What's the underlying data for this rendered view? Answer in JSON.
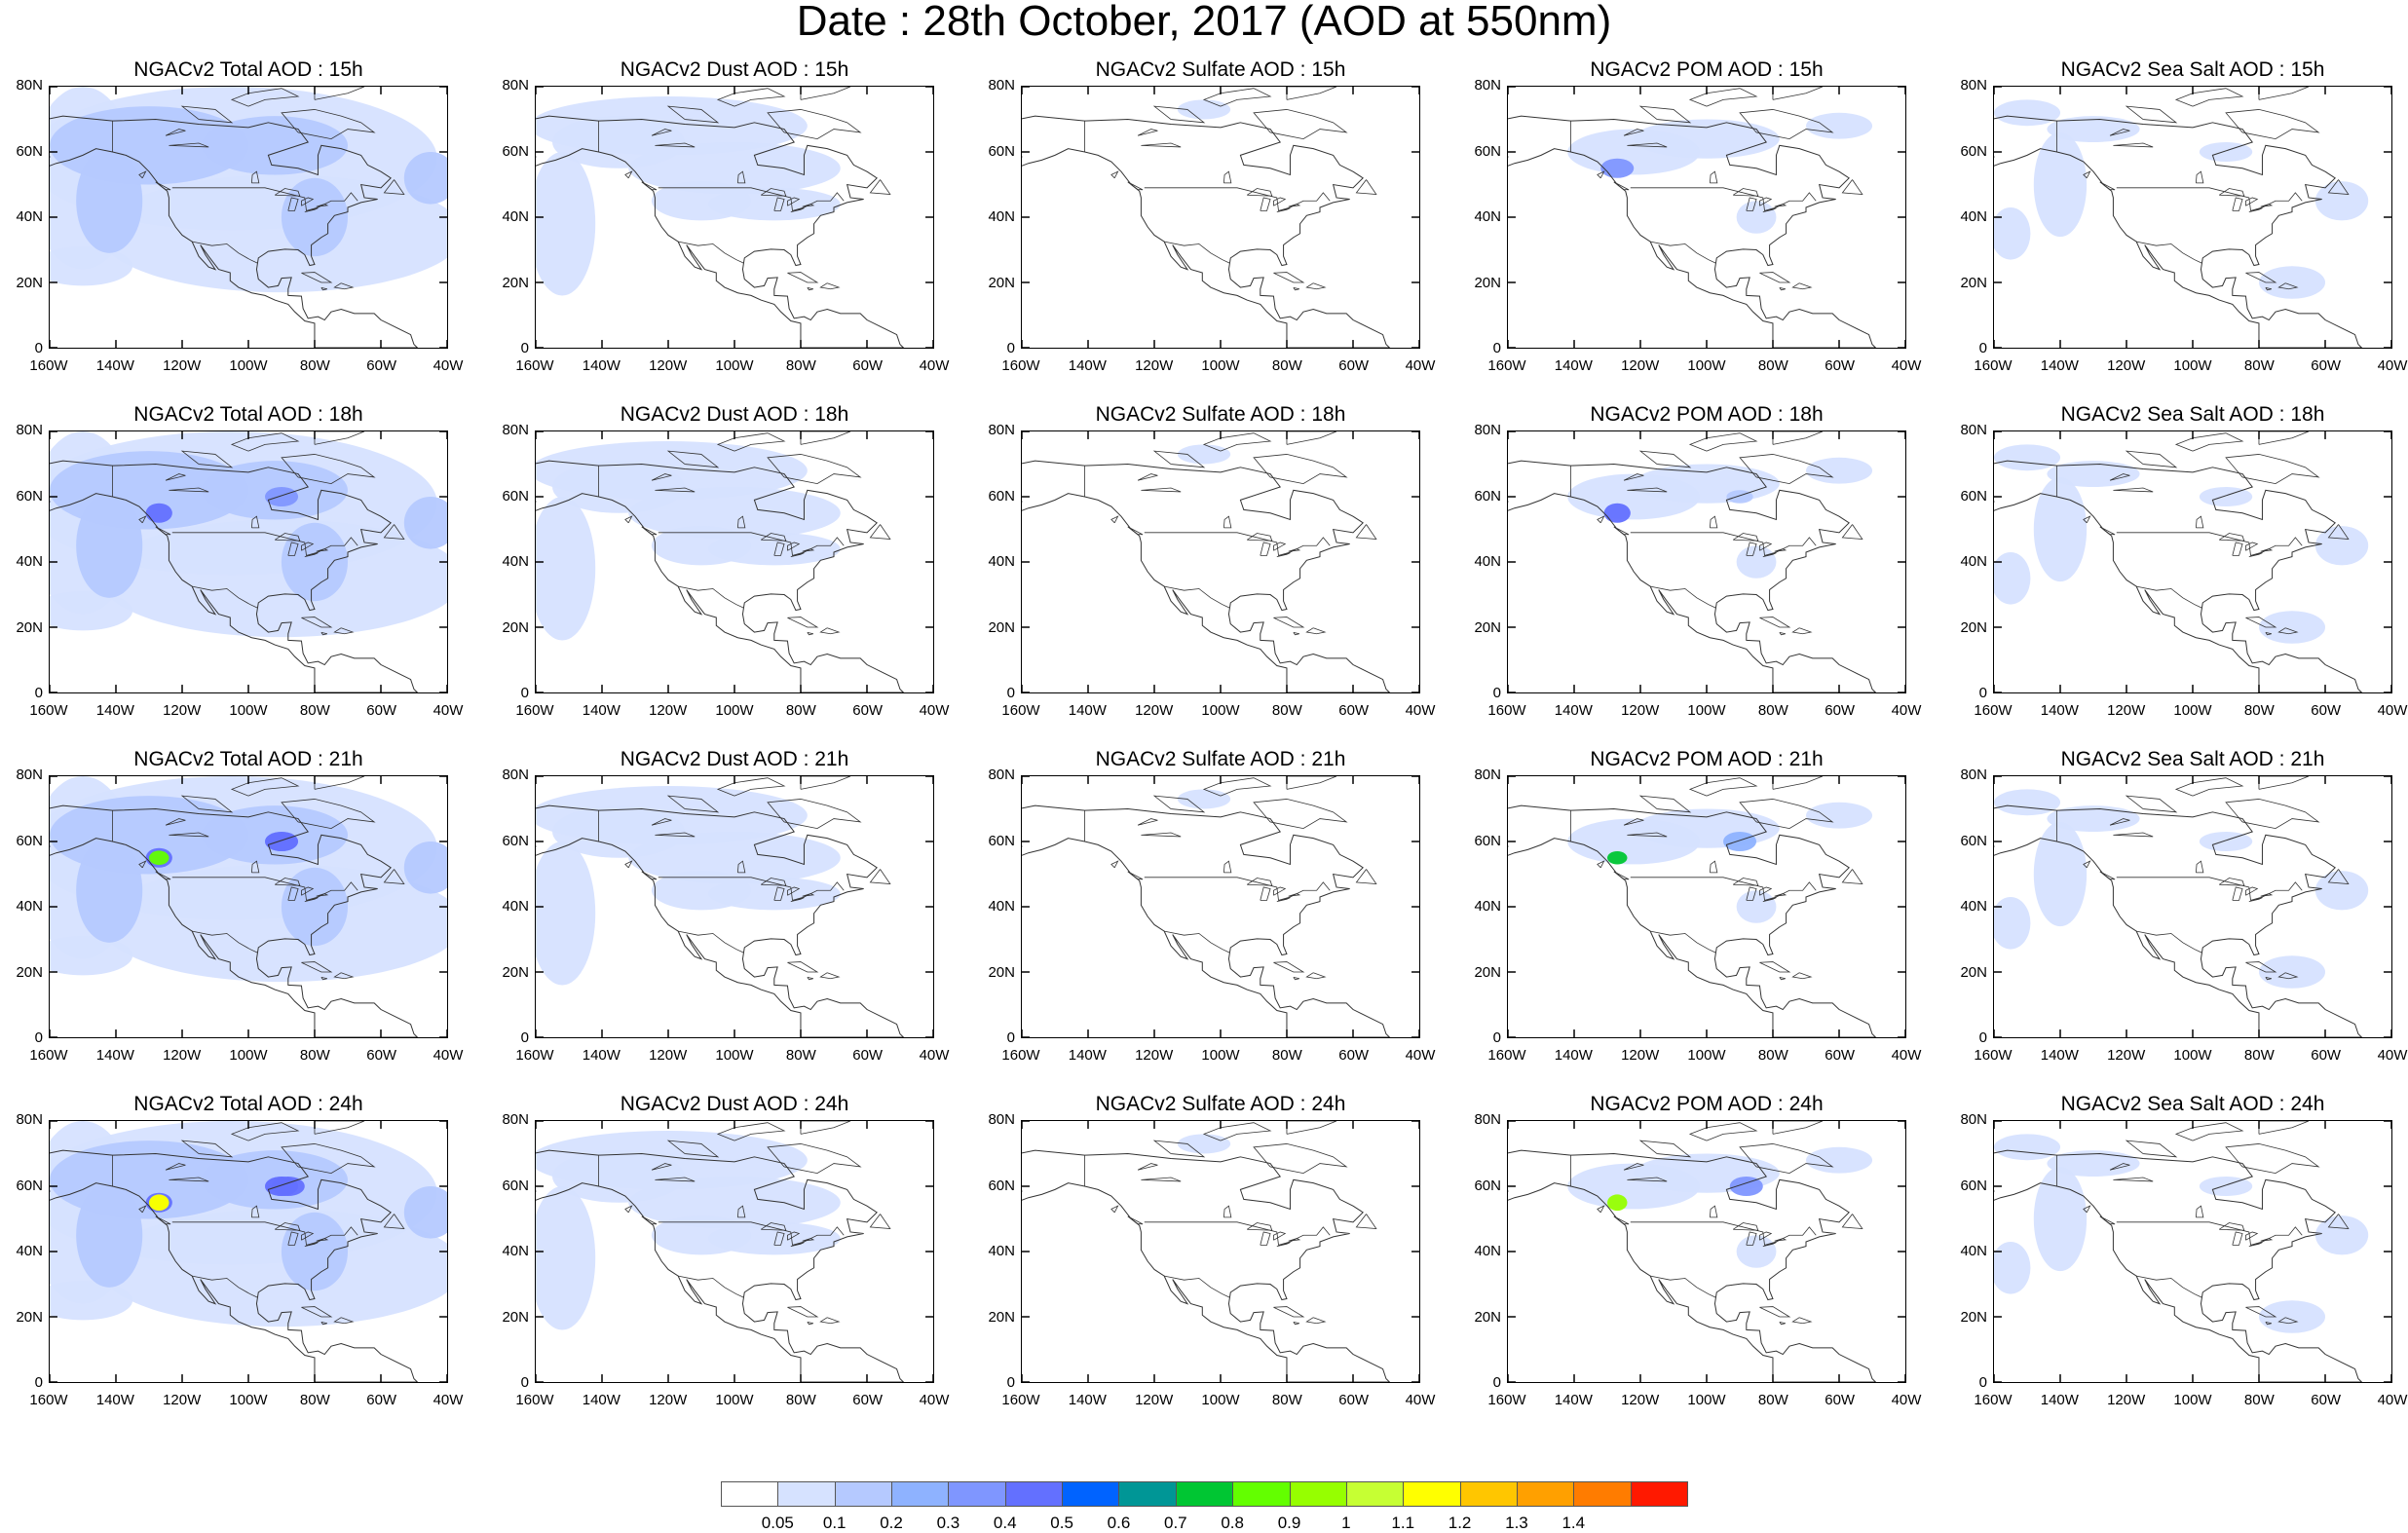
{
  "title": "Date : 28th October, 2017 (AOD at 550nm)",
  "hours": [
    "15h",
    "18h",
    "21h",
    "24h"
  ],
  "species": [
    "Total",
    "Dust",
    "Sulfate",
    "POM",
    "Sea Salt"
  ],
  "panel_titles": [
    [
      "NGACv2 Total AOD : 15h",
      "NGACv2 Dust AOD : 15h",
      "NGACv2 Sulfate AOD : 15h",
      "NGACv2 POM AOD : 15h",
      "NGACv2 Sea Salt AOD : 15h"
    ],
    [
      "NGACv2 Total AOD : 18h",
      "NGACv2 Dust AOD : 18h",
      "NGACv2 Sulfate AOD : 18h",
      "NGACv2 POM AOD : 18h",
      "NGACv2 Sea Salt AOD : 18h"
    ],
    [
      "NGACv2 Total AOD : 21h",
      "NGACv2 Dust AOD : 21h",
      "NGACv2 Sulfate AOD : 21h",
      "NGACv2 POM AOD : 21h",
      "NGACv2 Sea Salt AOD : 21h"
    ],
    [
      "NGACv2 Total AOD : 24h",
      "NGACv2 Dust AOD : 24h",
      "NGACv2 Sulfate AOD : 24h",
      "NGACv2 POM AOD : 24h",
      "NGACv2 Sea Salt  AOD : 24h"
    ]
  ],
  "lat_ticks": [
    "80N",
    "60N",
    "40N",
    "20N",
    "0"
  ],
  "lon_ticks": [
    "160W",
    "140W",
    "120W",
    "100W",
    "80W",
    "60W",
    "40W"
  ],
  "colorbar": {
    "colors": [
      "#ffffff",
      "#d6e2ff",
      "#b5c9ff",
      "#8eb2ff",
      "#7f96ff",
      "#6370ff",
      "#0063ff",
      "#009696",
      "#00c633",
      "#63ff00",
      "#96ff00",
      "#c6ff33",
      "#ffff00",
      "#ffc600",
      "#ffa000",
      "#ff7c00",
      "#ff1900"
    ],
    "labels": [
      "0.05",
      "0.1",
      "0.2",
      "0.3",
      "0.4",
      "0.5",
      "0.6",
      "0.7",
      "0.8",
      "0.9",
      "1",
      "1.1",
      "1.2",
      "1.3",
      "1.4"
    ]
  }
}
